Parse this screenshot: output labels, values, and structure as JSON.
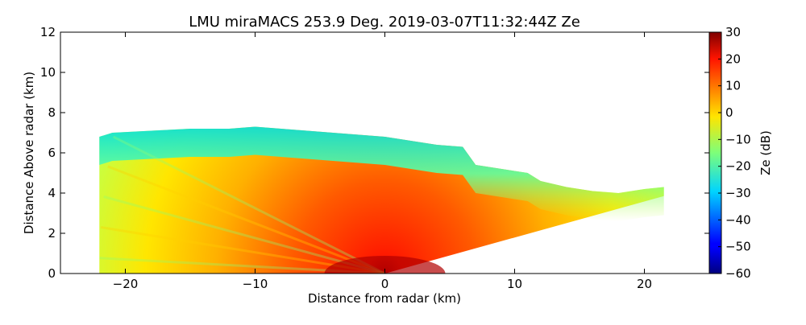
{
  "chart_data": {
    "type": "heatmap",
    "title": "LMU miraMACS 253.9 Deg. 2019-03-07T11:32:44Z  Ze",
    "xlabel": "Distance from radar (km)",
    "ylabel": "Distance Above radar  (km)",
    "xlim": [
      -25,
      25
    ],
    "ylim": [
      0,
      12
    ],
    "x_ticks": [
      -20,
      -10,
      0,
      10,
      20
    ],
    "x_tick_labels": [
      "−20",
      "−10",
      "0",
      "10",
      "20"
    ],
    "y_ticks": [
      0,
      2,
      4,
      6,
      8,
      10,
      12
    ],
    "y_tick_labels": [
      "0",
      "2",
      "4",
      "6",
      "8",
      "10",
      "12"
    ],
    "colorbar": {
      "label": "Ze (dB)",
      "range": [
        -60,
        30
      ],
      "ticks": [
        30,
        20,
        10,
        0,
        -10,
        -20,
        -30,
        -40,
        -50,
        -60
      ],
      "tick_labels": [
        "30",
        "20",
        "10",
        "0",
        "−10",
        "−20",
        "−30",
        "−40",
        "−50",
        "−60"
      ],
      "colormap": "jet"
    },
    "echo": {
      "description": "RHI scan reflectivity",
      "top_profile_km": [
        [
          -22,
          6.8
        ],
        [
          -21,
          7.0
        ],
        [
          -18,
          7.1
        ],
        [
          -15,
          7.2
        ],
        [
          -12,
          7.2
        ],
        [
          -10,
          7.3
        ],
        [
          -8,
          7.2
        ],
        [
          -6,
          7.1
        ],
        [
          -4,
          7.0
        ],
        [
          -2,
          6.9
        ],
        [
          0,
          6.8
        ],
        [
          2,
          6.6
        ],
        [
          4,
          6.4
        ],
        [
          6,
          6.3
        ],
        [
          7,
          5.4
        ],
        [
          9,
          5.2
        ],
        [
          11,
          5.0
        ],
        [
          12,
          4.6
        ],
        [
          14,
          4.3
        ],
        [
          16,
          4.1
        ],
        [
          18,
          4.0
        ],
        [
          20,
          4.2
        ],
        [
          21.5,
          4.3
        ]
      ],
      "left_edge_x_km": -22,
      "right_edge_x_km": 21.5,
      "max_range_km": 22,
      "core_dBZ": 25,
      "edge_dBZ": -30
    }
  }
}
